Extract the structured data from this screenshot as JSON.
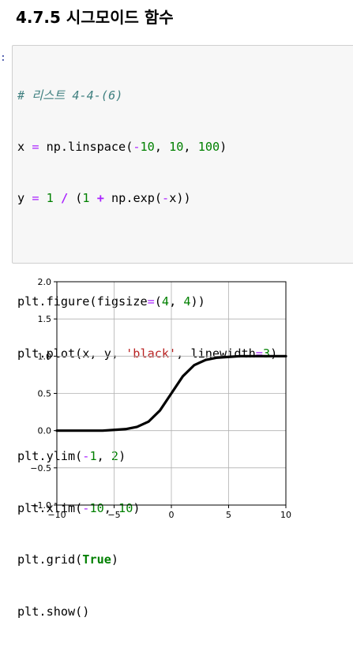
{
  "heading": "4.7.5 시그모이드 함수",
  "cell": {
    "prompt": ":",
    "comment": "# 리스트 4-4-(6)",
    "line_x": {
      "var": "x",
      "eq": "=",
      "call": "np.linspace(",
      "a": "-",
      "b": "10",
      "c": ", ",
      "d": "10",
      "e": ", ",
      "f": "100",
      "g": ")"
    },
    "line_y": {
      "var": "y",
      "eq": "=",
      "one": "1",
      "slash": "/",
      "open": "(",
      "one2": "1",
      "plus": "+",
      "call": "np.exp(",
      "neg": "-",
      "x": "x))"
    },
    "line_fig": {
      "a": "plt.figure(figsize",
      "eq": "=",
      "b": "(",
      "n1": "4",
      "c": ", ",
      "n2": "4",
      "d": "))"
    },
    "line_plot": {
      "a": "plt.plot(x, y, ",
      "s": "'black'",
      "b": ", linewidth",
      "eq": "=",
      "n": "3",
      "c": ")"
    },
    "line_ylim": {
      "a": "plt.ylim(",
      "neg": "-",
      "n1": "1",
      "b": ", ",
      "n2": "2",
      "c": ")"
    },
    "line_xlim": {
      "a": "plt.xlim(",
      "neg": "-",
      "n1": "10",
      "b": ", ",
      "n2": "10",
      "c": ")"
    },
    "line_grid": {
      "a": "plt.grid(",
      "kw": "True",
      "b": ")"
    },
    "line_show": "plt.show()"
  },
  "chart_data": {
    "type": "line",
    "title": "",
    "xlabel": "",
    "ylabel": "",
    "xlim": [
      -10,
      10
    ],
    "ylim": [
      -1,
      2
    ],
    "grid": true,
    "xticks": [
      -10,
      -5,
      0,
      5,
      10
    ],
    "xtick_labels": [
      "−10",
      "−5",
      "0",
      "5",
      "10"
    ],
    "yticks": [
      -1.0,
      -0.5,
      0.0,
      0.5,
      1.0,
      1.5,
      2.0
    ],
    "ytick_labels": [
      "−1.0",
      "−0.5",
      "0.0",
      "0.5",
      "1.0",
      "1.5",
      "2.0"
    ],
    "series": [
      {
        "color": "#000000",
        "x": [
          -10,
          -9,
          -8,
          -7,
          -6,
          -5,
          -4,
          -3,
          -2,
          -1,
          0,
          1,
          2,
          3,
          4,
          5,
          6,
          7,
          8,
          9,
          10
        ],
        "y": [
          0.0,
          0.0,
          0.0,
          0.0,
          0.0,
          0.01,
          0.02,
          0.05,
          0.12,
          0.27,
          0.5,
          0.73,
          0.88,
          0.95,
          0.98,
          0.99,
          1.0,
          1.0,
          1.0,
          1.0,
          1.0
        ]
      }
    ]
  }
}
